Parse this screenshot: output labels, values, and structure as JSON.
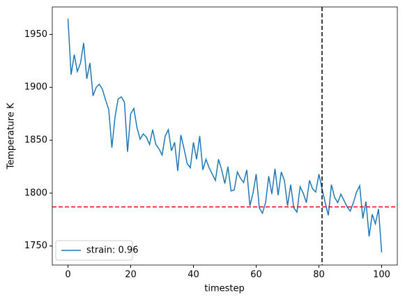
{
  "chart_data": {
    "type": "line",
    "xlabel": "timestep",
    "ylabel": "Temperature K",
    "x": [
      0,
      1,
      2,
      3,
      4,
      5,
      6,
      7,
      8,
      9,
      10,
      11,
      12,
      13,
      14,
      15,
      16,
      17,
      18,
      19,
      20,
      21,
      22,
      23,
      24,
      25,
      26,
      27,
      28,
      29,
      30,
      31,
      32,
      33,
      34,
      35,
      36,
      37,
      38,
      39,
      40,
      41,
      42,
      43,
      44,
      45,
      46,
      47,
      48,
      49,
      50,
      51,
      52,
      53,
      54,
      55,
      56,
      57,
      58,
      59,
      60,
      61,
      62,
      63,
      64,
      65,
      66,
      67,
      68,
      69,
      70,
      71,
      72,
      73,
      74,
      75,
      76,
      77,
      78,
      79,
      80,
      81,
      82,
      83,
      84,
      85,
      86,
      87,
      88,
      89,
      90,
      91,
      92,
      93,
      94,
      95,
      96,
      97,
      98,
      99,
      100
    ],
    "series": [
      {
        "name": "strain: 0.96",
        "color": "#1f77b4",
        "values": [
          1965,
          1912,
          1931,
          1915,
          1923,
          1942,
          1908,
          1923,
          1892,
          1900,
          1903,
          1898,
          1888,
          1879,
          1843,
          1872,
          1889,
          1891,
          1886,
          1839,
          1875,
          1880,
          1862,
          1851,
          1856,
          1853,
          1846,
          1860,
          1846,
          1842,
          1836,
          1854,
          1860,
          1840,
          1848,
          1821,
          1855,
          1842,
          1828,
          1824,
          1848,
          1832,
          1854,
          1822,
          1832,
          1824,
          1818,
          1812,
          1832,
          1822,
          1809,
          1825,
          1802,
          1803,
          1820,
          1814,
          1810,
          1822,
          1788,
          1800,
          1818,
          1786,
          1781,
          1791,
          1816,
          1799,
          1823,
          1798,
          1820,
          1812,
          1788,
          1808,
          1786,
          1782,
          1806,
          1800,
          1791,
          1812,
          1804,
          1801,
          1818,
          1804,
          1791,
          1779,
          1808,
          1796,
          1791,
          1799,
          1793,
          1787,
          1783,
          1791,
          1801,
          1807,
          1776,
          1792,
          1759,
          1780,
          1771,
          1785,
          1744
        ]
      }
    ],
    "hline": {
      "value": 1787,
      "color": "#ff0000"
    },
    "vline": {
      "value": 81,
      "color": "#000000"
    },
    "xlim": [
      -5,
      105
    ],
    "ylim": [
      1732,
      1976
    ],
    "xticks": [
      0,
      20,
      40,
      60,
      80,
      100
    ],
    "yticks": [
      1750,
      1800,
      1850,
      1900,
      1950
    ],
    "legend": "lower left"
  }
}
